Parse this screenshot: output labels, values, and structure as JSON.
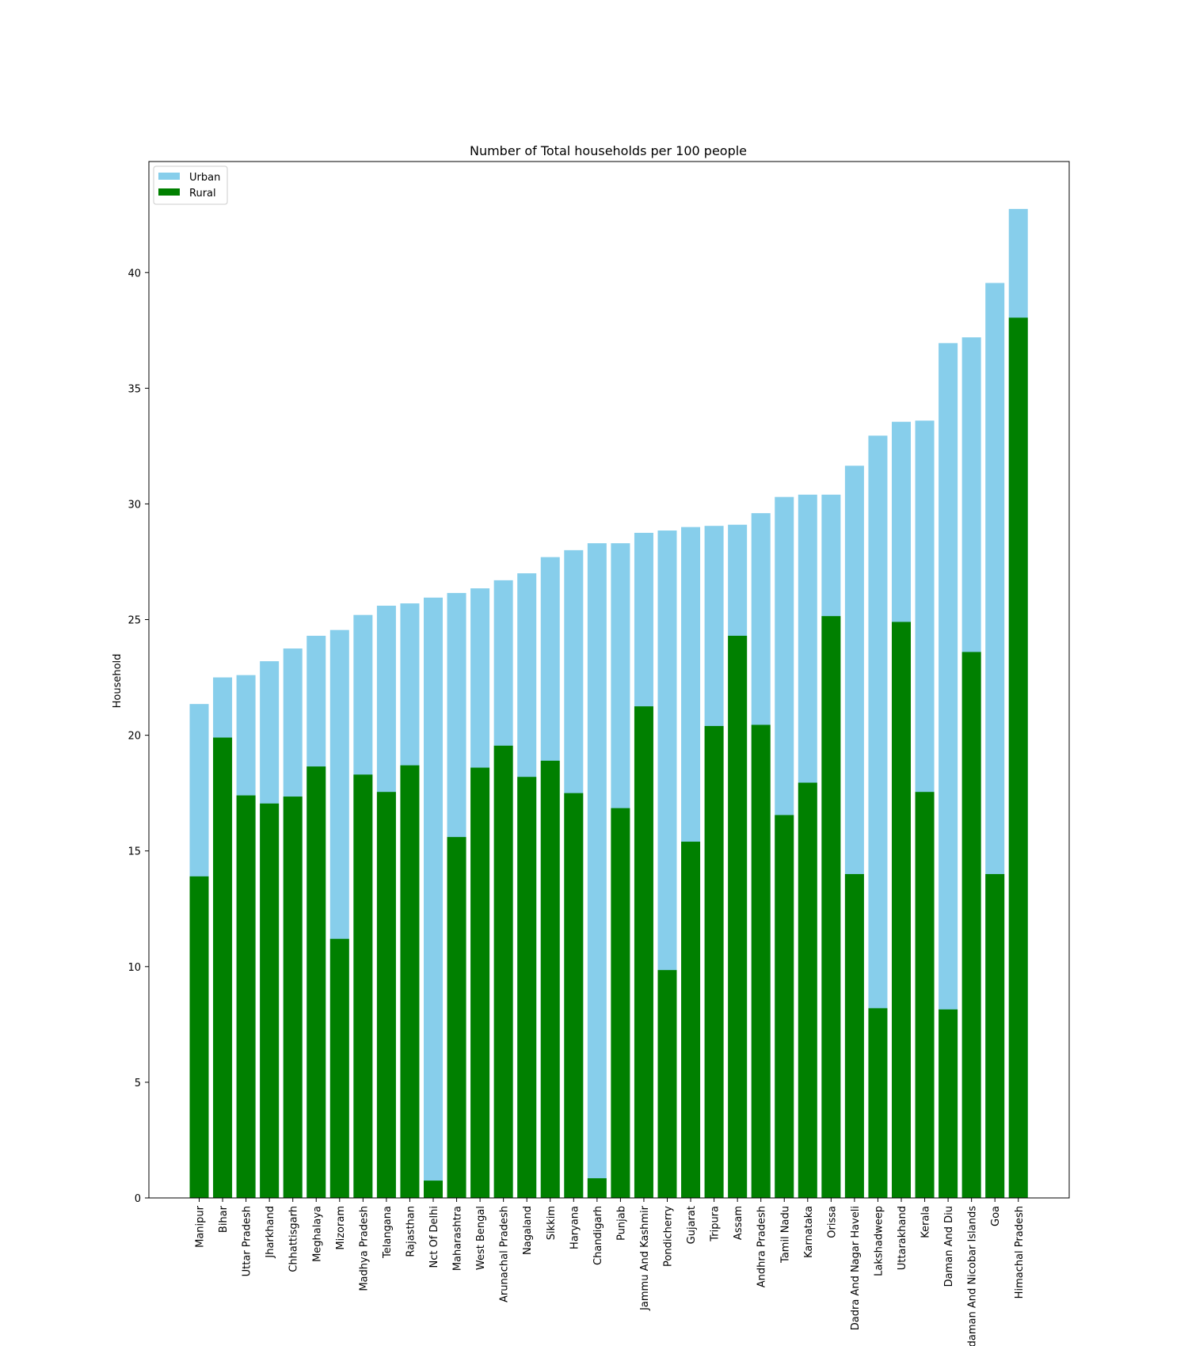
{
  "chart_data": {
    "type": "bar",
    "stacked": "overlay",
    "title": "Number of Total households per 100 people",
    "xlabel": "",
    "ylabel": "Household",
    "ylim": [
      0,
      44.8
    ],
    "yticks": [
      0,
      5,
      10,
      15,
      20,
      25,
      30,
      35,
      40
    ],
    "grid": false,
    "legend_position": "top-left",
    "categories": [
      "Manipur",
      "Bihar",
      "Uttar Pradesh",
      "Jharkhand",
      "Chhattisgarh",
      "Meghalaya",
      "Mizoram",
      "Madhya Pradesh",
      "Telangana",
      "Rajasthan",
      "Nct Of Delhi",
      "Maharashtra",
      "West Bengal",
      "Arunachal Pradesh",
      "Nagaland",
      "Sikkim",
      "Haryana",
      "Chandigarh",
      "Punjab",
      "Jammu And Kashmir",
      "Pondicherry",
      "Gujarat",
      "Tripura",
      "Assam",
      "Andhra Pradesh",
      "Tamil Nadu",
      "Karnataka",
      "Orissa",
      "Dadra And Nagar Haveli",
      "Lakshadweep",
      "Uttarakhand",
      "Kerala",
      "Daman And Diu",
      "Andaman And Nicobar Islands",
      "Goa",
      "Himachal Pradesh"
    ],
    "series": [
      {
        "name": "Urban",
        "color": "#87ceeb",
        "values": [
          21.35,
          22.5,
          22.6,
          23.2,
          23.75,
          24.3,
          24.55,
          25.2,
          25.6,
          25.7,
          25.95,
          26.15,
          26.35,
          26.7,
          27.0,
          27.7,
          28.0,
          28.3,
          28.3,
          28.75,
          28.85,
          29.0,
          29.05,
          29.1,
          29.6,
          30.3,
          30.4,
          30.4,
          31.65,
          32.95,
          33.55,
          33.6,
          36.95,
          37.2,
          39.55,
          42.75
        ]
      },
      {
        "name": "Rural",
        "color": "#008000",
        "values": [
          13.9,
          19.9,
          17.4,
          17.05,
          17.35,
          18.65,
          11.2,
          18.3,
          17.55,
          18.7,
          0.75,
          15.6,
          18.6,
          19.55,
          18.2,
          18.9,
          17.5,
          0.85,
          16.85,
          21.25,
          9.85,
          15.4,
          20.4,
          24.3,
          20.45,
          16.55,
          17.95,
          25.15,
          14.0,
          8.2,
          24.9,
          17.55,
          8.15,
          23.6,
          14.0,
          38.05
        ]
      }
    ]
  }
}
